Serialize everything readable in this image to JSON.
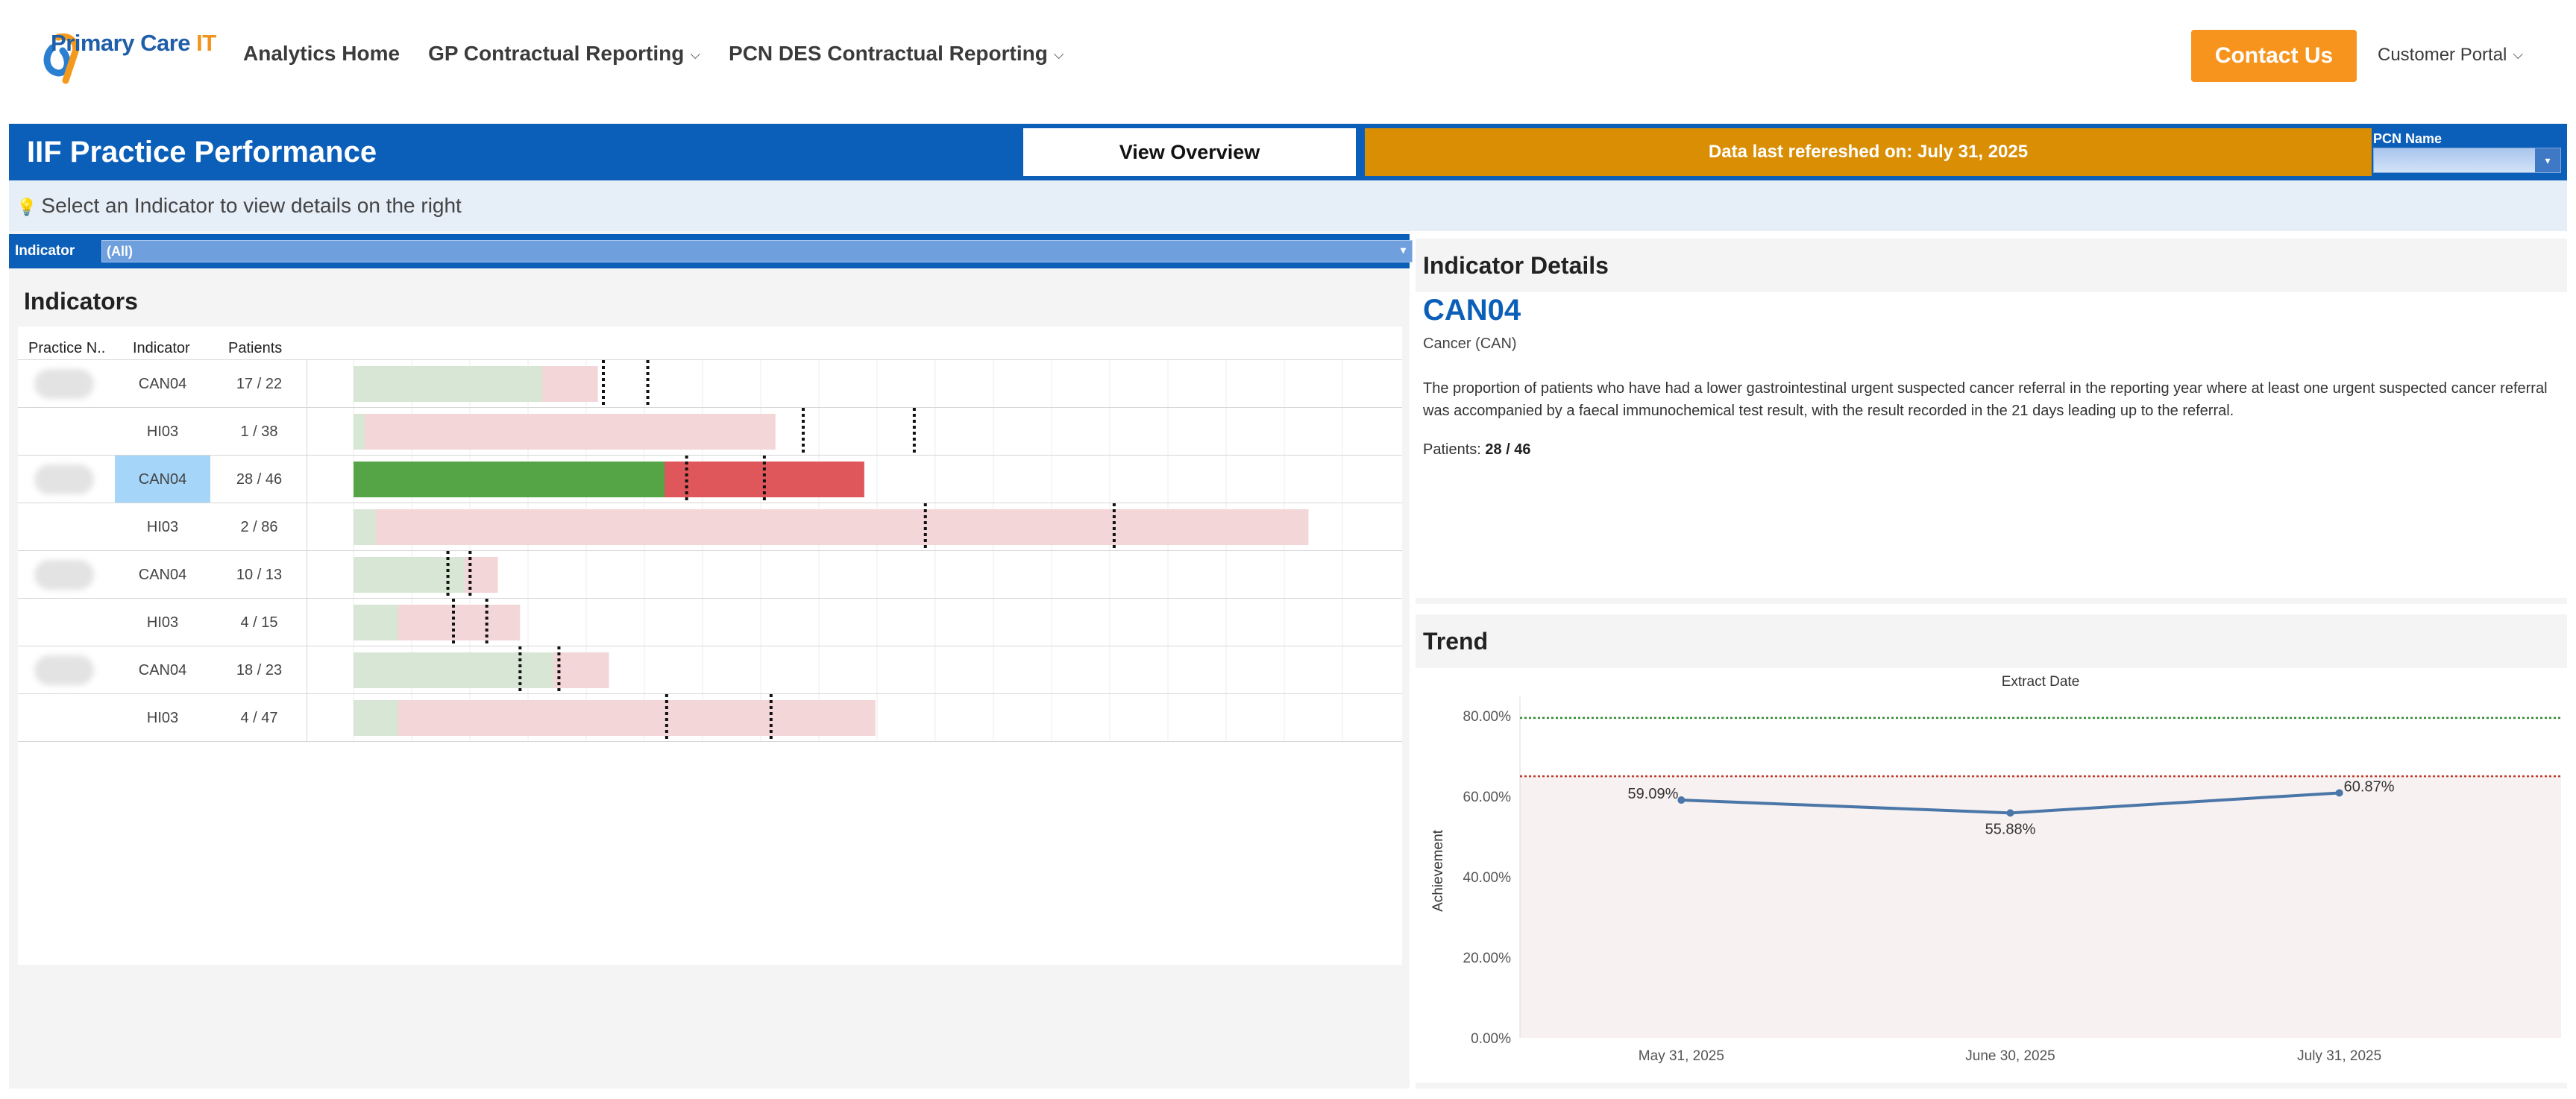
{
  "nav": {
    "logo_text_a": "P",
    "logo_text_b": "rimary Care ",
    "logo_text_c": "IT",
    "links": [
      {
        "label": "Analytics Home",
        "dropdown": false
      },
      {
        "label": "GP Contractual Reporting",
        "dropdown": true
      },
      {
        "label": "PCN DES Contractual Reporting",
        "dropdown": true
      }
    ],
    "contact_label": "Contact Us",
    "portal_label": "Customer Portal",
    "dropdown_glyph": "⌵"
  },
  "header": {
    "title": "IIF Practice Performance",
    "overview_label": "View Overview",
    "refresh_text": "Data last refereshed on: July 31, 2025",
    "pcn_label": "PCN Name",
    "select_arrow": "▾"
  },
  "hint": {
    "icon": "💡",
    "text": "Select an Indicator to view details on the right"
  },
  "filter": {
    "label": "Indicator",
    "value": "(All)",
    "arrow": "▾"
  },
  "indicators": {
    "title": "Indicators",
    "columns": [
      "Practice N..",
      "Indicator",
      "Patients"
    ],
    "rows": [
      {
        "indicator": "CAN04",
        "patients": "17 / 22",
        "achieved": 17,
        "total": 22,
        "t1": 22.5,
        "t2": 26.5,
        "selected": false
      },
      {
        "indicator": "HI03",
        "patients": "1 / 38",
        "achieved": 1,
        "total": 38,
        "t1": 40.5,
        "t2": 50.5,
        "selected": false
      },
      {
        "indicator": "CAN04",
        "patients": "28 / 46",
        "achieved": 28,
        "total": 46,
        "t1": 30,
        "t2": 37,
        "selected": true
      },
      {
        "indicator": "HI03",
        "patients": "2 / 86",
        "achieved": 2,
        "total": 86,
        "t1": 51.5,
        "t2": 68.5,
        "selected": false
      },
      {
        "indicator": "CAN04",
        "patients": "10 / 13",
        "achieved": 10,
        "total": 13,
        "t1": 8.5,
        "t2": 10.5,
        "selected": false
      },
      {
        "indicator": "HI03",
        "patients": "4 / 15",
        "achieved": 4,
        "total": 15,
        "t1": 9,
        "t2": 12,
        "selected": false
      },
      {
        "indicator": "CAN04",
        "patients": "18 / 23",
        "achieved": 18,
        "total": 23,
        "t1": 15,
        "t2": 18.5,
        "selected": false
      },
      {
        "indicator": "HI03",
        "patients": "4 / 47",
        "achieved": 4,
        "total": 47,
        "t1": 28.2,
        "t2": 37.6,
        "selected": false
      }
    ],
    "scale_max": 90,
    "colors": {
      "achieved_light": "#d8e7d5",
      "remaining_light": "#f3d6d8",
      "achieved_strong": "#55a546",
      "remaining_strong": "#e0575b",
      "grid": "#ececec",
      "target": "#111111"
    }
  },
  "details": {
    "title": "Indicator Details",
    "code": "CAN04",
    "group": "Cancer (CAN)",
    "description": "The proportion of patients who have had a lower gastrointestinal urgent suspected cancer referral in the reporting year where at least one urgent suspected cancer referral was accompanied by a faecal immunochemical test result, with the result recorded in the 21 days leading up to the referral.",
    "patients_label": "Patients:",
    "patients_value": "28 / 46"
  },
  "chart_data": {
    "type": "line",
    "title": "Trend",
    "xlabel": "Extract Date",
    "ylabel": "Achievement",
    "categories": [
      "May 31, 2025",
      "June 30, 2025",
      "July 31, 2025"
    ],
    "series": [
      {
        "values": [
          59.09,
          55.88,
          60.87
        ]
      }
    ],
    "value_labels": [
      "59.09%",
      "55.88%",
      "60.87%"
    ],
    "y_ticks": [
      "0.00%",
      "20.00%",
      "40.00%",
      "60.00%",
      "80.00%"
    ],
    "ylim": [
      0,
      83
    ],
    "reference_lines": [
      {
        "value": 79.5,
        "color": "#2e8b2e"
      },
      {
        "value": 65,
        "color": "#c0392b"
      }
    ],
    "band_color": "#f8f1f1",
    "line_color": "#4a76a8",
    "grid": false
  }
}
